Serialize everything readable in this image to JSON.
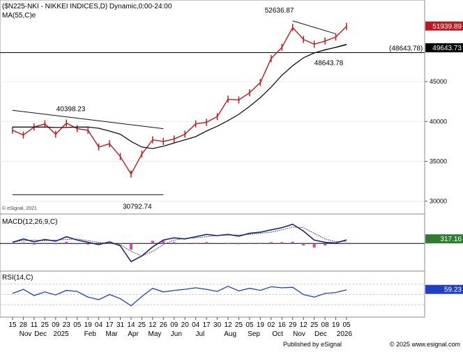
{
  "chart_data": [
    {
      "panel": "price",
      "type": "ohlc",
      "title": "($N225-NKI - NIKKEI INDICES,D) Dynamic,0:00-24:00",
      "overlay_label": "MA(55,C)e",
      "y_axis_ticks": [
        30000,
        35000,
        40000,
        45000
      ],
      "ylim": [
        29000,
        53500
      ],
      "copyright": "© eSignal, 2021",
      "last_price_label": "51939.89",
      "ma_label": "49643.73",
      "hline_label": "(48643.78)",
      "hline_value": 48643.78,
      "annotations": [
        {
          "text": "52636.87",
          "value": 52636.87
        },
        {
          "text": "40398.23",
          "value": 40398.23
        },
        {
          "text": "48643.78",
          "value": 48643.78
        },
        {
          "text": "30792.74",
          "value": 30792.74
        }
      ],
      "x": [
        "Nov 15",
        "Nov 28",
        "Dec 11",
        "Dec 25",
        "Jan 09",
        "Jan 23",
        "Feb 05",
        "Feb 19",
        "Mar 04",
        "Mar 17",
        "Mar 31",
        "Apr 14",
        "Apr 25",
        "May 12",
        "May 26",
        "Jun 09",
        "Jun 20",
        "Jul 04",
        "Jul 17",
        "Jul 30",
        "Aug 12",
        "Aug 25",
        "Sep 05",
        "Sep 19",
        "Oct 02",
        "Oct 16",
        "Oct 29",
        "Nov 12",
        "Nov 25",
        "Dec 08",
        "Dec 19",
        "Jan 05"
      ],
      "close": [
        38900,
        38300,
        39300,
        39700,
        38400,
        39800,
        39100,
        38900,
        36800,
        37200,
        35600,
        33400,
        35900,
        37700,
        37500,
        37800,
        38400,
        39700,
        39900,
        40600,
        42800,
        42700,
        43600,
        44900,
        47900,
        49300,
        51800,
        50300,
        49700,
        50100,
        50600,
        51939.89
      ],
      "ma55": [
        39300,
        39300,
        39300,
        39300,
        39250,
        39250,
        39300,
        39300,
        39150,
        38800,
        38400,
        37500,
        36800,
        36600,
        36900,
        37300,
        37700,
        38100,
        38800,
        39400,
        40100,
        40900,
        41900,
        43000,
        44300,
        45800,
        47000,
        48000,
        48600,
        49000,
        49300,
        49643.73
      ],
      "trendlines": [
        {
          "from": [
            "Nov 15",
            41400
          ],
          "to": [
            "May 26",
            39100
          ]
        },
        {
          "from": [
            "Nov 15",
            30800
          ],
          "to": [
            "May 26",
            30800
          ]
        },
        {
          "from": [
            "Oct 29",
            52636.87
          ],
          "to": [
            "Dec 19",
            51000
          ]
        },
        {
          "from": [
            "Nov 25",
            48600
          ],
          "to": [
            "Jan 05",
            49700
          ]
        }
      ]
    },
    {
      "panel": "macd",
      "type": "line",
      "title": "MACD(12,26,9,C)",
      "last_label": "317.16",
      "x": [
        "Nov 15",
        "Nov 28",
        "Dec 11",
        "Dec 25",
        "Jan 09",
        "Jan 23",
        "Feb 05",
        "Feb 19",
        "Mar 04",
        "Mar 17",
        "Mar 31",
        "Apr 14",
        "Apr 25",
        "May 12",
        "May 26",
        "Jun 09",
        "Jun 20",
        "Jul 04",
        "Jul 17",
        "Jul 30",
        "Aug 12",
        "Aug 25",
        "Sep 05",
        "Sep 19",
        "Oct 02",
        "Oct 16",
        "Oct 29",
        "Nov 12",
        "Nov 25",
        "Dec 08",
        "Dec 19",
        "Jan 05"
      ],
      "macd": [
        100,
        400,
        150,
        350,
        200,
        600,
        300,
        100,
        -100,
        150,
        -200,
        -1600,
        -1100,
        -300,
        300,
        500,
        400,
        600,
        800,
        700,
        800,
        650,
        900,
        1000,
        1200,
        1400,
        1700,
        1100,
        300,
        100,
        50,
        317.16
      ],
      "signal": [
        150,
        250,
        300,
        250,
        300,
        350,
        400,
        250,
        100,
        0,
        -100,
        -700,
        -1100,
        -700,
        -100,
        300,
        450,
        500,
        600,
        700,
        750,
        750,
        800,
        900,
        1000,
        1200,
        1450,
        1400,
        900,
        400,
        150,
        200
      ],
      "zero": 0
    },
    {
      "panel": "rsi",
      "type": "line",
      "title": "RSI(14,C)",
      "last_label": "59.23",
      "levels": [
        30,
        50,
        70
      ],
      "x": [
        "Nov 15",
        "Nov 28",
        "Dec 11",
        "Dec 25",
        "Jan 09",
        "Jan 23",
        "Feb 05",
        "Feb 19",
        "Mar 04",
        "Mar 17",
        "Mar 31",
        "Apr 14",
        "Apr 25",
        "May 12",
        "May 26",
        "Jun 09",
        "Jun 20",
        "Jul 04",
        "Jul 17",
        "Jul 30",
        "Aug 12",
        "Aug 25",
        "Sep 05",
        "Sep 19",
        "Oct 02",
        "Oct 16",
        "Oct 29",
        "Nov 12",
        "Nov 25",
        "Dec 08",
        "Dec 19",
        "Jan 05"
      ],
      "rsi": [
        52,
        60,
        48,
        55,
        49,
        58,
        56,
        45,
        40,
        50,
        42,
        28,
        46,
        62,
        55,
        58,
        60,
        63,
        60,
        56,
        66,
        57,
        62,
        58,
        65,
        63,
        64,
        50,
        45,
        52,
        54,
        59.23
      ]
    }
  ],
  "x_axis": {
    "ticks": [
      "15",
      "28",
      "11",
      "25",
      "09",
      "23",
      "05",
      "19",
      "04",
      "17",
      "31",
      "14",
      "25",
      "12",
      "26",
      "09",
      "20",
      "04",
      "17",
      "30",
      "12",
      "25",
      "05",
      "19",
      "02",
      "16",
      "29",
      "12",
      "25",
      "08",
      "19",
      "05"
    ],
    "months": [
      "Nov",
      "Dec",
      "2025",
      "Feb",
      "Mar",
      "Apr",
      "May",
      "Jun",
      "Jul",
      "Aug",
      "Sep",
      "Oct",
      "Nov",
      "Dec",
      "2026"
    ]
  },
  "footer": {
    "left": "Published by eSignal",
    "right": "© 2025 www.esignal.com"
  },
  "colors": {
    "price": "#c0181c",
    "ma": "#111111",
    "macd": "#1a237e",
    "macd_signal": "#555555",
    "histogram": "#e040b0",
    "rsi": "#1f3fc6",
    "last_price_bg": "#c0181c",
    "ma_label_bg": "#000000",
    "macd_label_bg": "#2e7d32",
    "rsi_label_bg": "#1f3fc6",
    "hline": "#000000"
  }
}
